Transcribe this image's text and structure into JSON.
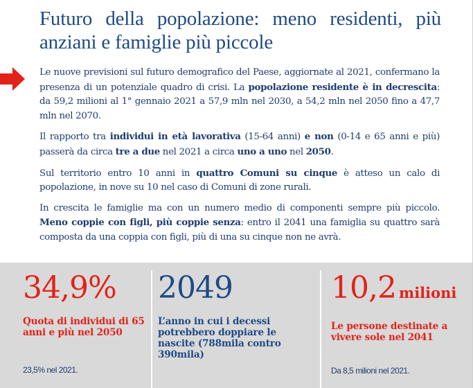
{
  "title": "Futuro della popolazione: meno residenti, più anziani e famiglie più piccole",
  "colors": {
    "accent_red": "#e2231a",
    "text_blue": "#1f4a85",
    "band_gray": "#d9d9d9"
  },
  "arrow_icon": "arrow-right-icon",
  "paragraphs": [
    {
      "segments": [
        {
          "text": "Le nuove previsioni sul futuro demografico del Paese, aggiornate al 2021, confermano la presenza di un potenziale quadro di crisi. La ",
          "bold": false
        },
        {
          "text": "popolazione residente è in decrescita",
          "bold": true
        },
        {
          "text": ": da 59,2 milioni al 1° gennaio 2021 a 57,9 mln nel 2030, a 54,2 mln nel 2050 fino a 47,7 mln nel 2070.",
          "bold": false
        }
      ]
    },
    {
      "segments": [
        {
          "text": "Il rapporto tra ",
          "bold": false
        },
        {
          "text": "individui in età lavorativa",
          "bold": true
        },
        {
          "text": " (15-64 anni) ",
          "bold": false
        },
        {
          "text": "e non",
          "bold": true
        },
        {
          "text": " (0-14 e 65 anni e più) passerà da circa ",
          "bold": false
        },
        {
          "text": "tre a due",
          "bold": true
        },
        {
          "text": " nel 2021 a circa ",
          "bold": false
        },
        {
          "text": "uno a uno",
          "bold": true
        },
        {
          "text": " nel ",
          "bold": false
        },
        {
          "text": "2050",
          "bold": true
        },
        {
          "text": ".",
          "bold": false
        }
      ]
    },
    {
      "segments": [
        {
          "text": "Sul territorio entro 10 anni in ",
          "bold": false
        },
        {
          "text": "quattro Comuni su cinque",
          "bold": true
        },
        {
          "text": " è atteso un calo di popolazione, in nove su 10 nel caso di Comuni di zone rurali.",
          "bold": false
        }
      ]
    },
    {
      "segments": [
        {
          "text": "In crescita le famiglie ma con un numero medio di componenti sempre più piccolo. ",
          "bold": false
        },
        {
          "text": "Meno coppie con figli, più coppie senza",
          "bold": true
        },
        {
          "text": ": entro il 2041 una famiglia su quattro sarà composta da una coppia con figli, più di una su cinque non ne avrà.",
          "bold": false
        }
      ]
    }
  ],
  "stats": [
    {
      "value": "34,9%",
      "unit": "",
      "description": "Quota di individui di 65 anni e più nel 2050",
      "note": "23,5% nel 2021."
    },
    {
      "value": "2049",
      "unit": "",
      "description": "L’anno in cui i decessi potrebbero doppiare le nascite (788mila contro 390mila)",
      "note": ""
    },
    {
      "value": "10,2",
      "unit": "milioni",
      "description": "Le persone destinate a vivere sole nel 2041",
      "note": "Da 8,5 milioni nel 2021."
    }
  ]
}
